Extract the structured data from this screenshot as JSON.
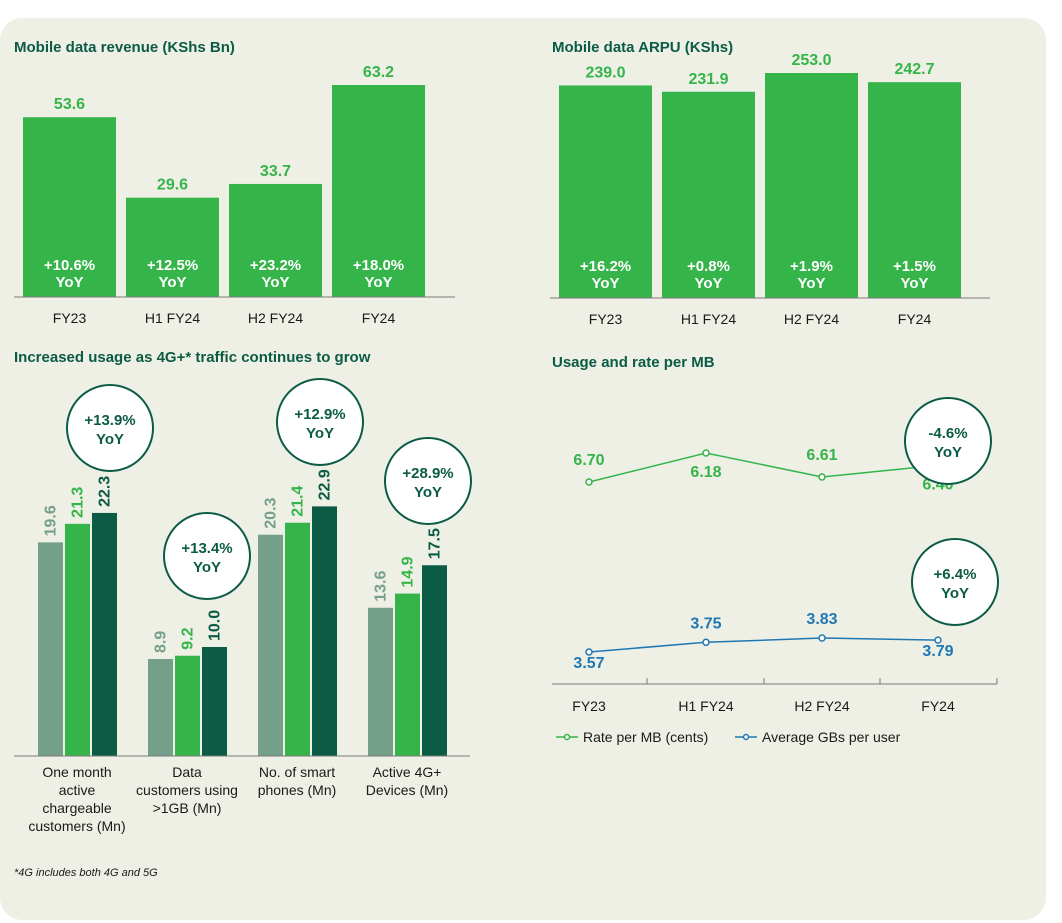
{
  "colors": {
    "bright_green": "#35b44a",
    "dark_green": "#0b5b45",
    "grey_green": "#749f8b",
    "blue": "#1f78b4",
    "panel_bg": "#eef0e6"
  },
  "chart_data": [
    {
      "type": "bar",
      "title": "Mobile data revenue (KShs Bn)",
      "categories": [
        "FY23",
        "H1 FY24",
        "H2 FY24",
        "FY24"
      ],
      "values": [
        53.6,
        29.6,
        33.7,
        63.2
      ],
      "value_labels": [
        "53.6",
        "29.6",
        "33.7",
        "63.2"
      ],
      "yoy_pct": [
        "+10.6%",
        "+12.5%",
        "+23.2%",
        "+18.0%"
      ],
      "yoy_suffix": "YoY"
    },
    {
      "type": "bar",
      "title": "Mobile data ARPU (KShs)",
      "categories": [
        "FY23",
        "H1 FY24",
        "H2 FY24",
        "FY24"
      ],
      "values": [
        239.0,
        231.9,
        253.0,
        242.7
      ],
      "value_labels": [
        "239.0",
        "231.9",
        "253.0",
        "242.7"
      ],
      "yoy_pct": [
        "+16.2%",
        "+0.8%",
        "+1.9%",
        "+1.5%"
      ],
      "yoy_suffix": "YoY"
    },
    {
      "type": "bar",
      "title": "Increased usage as 4G+* traffic continues to grow",
      "groups": [
        {
          "label_lines": [
            "One month",
            "active",
            "chargeable",
            "customers (Mn)"
          ],
          "values": [
            19.6,
            21.3,
            22.3
          ],
          "value_labels": [
            "19.6",
            "21.3",
            "22.3"
          ],
          "bubble": [
            "+13.9%",
            "YoY"
          ]
        },
        {
          "label_lines": [
            "Data",
            "customers using",
            ">1GB (Mn)"
          ],
          "values": [
            8.9,
            9.2,
            10.0
          ],
          "value_labels": [
            "8.9",
            "9.2",
            "10.0"
          ],
          "bubble": [
            "+13.4%",
            "YoY"
          ]
        },
        {
          "label_lines": [
            "No. of smart",
            "phones (Mn)"
          ],
          "values": [
            20.3,
            21.4,
            22.9
          ],
          "value_labels": [
            "20.3",
            "21.4",
            "22.9"
          ],
          "bubble": [
            "+12.9%",
            "YoY"
          ]
        },
        {
          "label_lines": [
            "Active 4G+",
            "Devices (Mn)"
          ],
          "values": [
            13.6,
            14.9,
            17.5
          ],
          "value_labels": [
            "13.6",
            "14.9",
            "17.5"
          ],
          "bubble": [
            "+28.9%",
            "YoY"
          ]
        }
      ],
      "series_colors": [
        "#749f8b",
        "#35b44a",
        "#0b5b45"
      ],
      "footnote": "*4G includes both 4G and 5G"
    },
    {
      "type": "line",
      "title": "Usage and rate per MB",
      "categories": [
        "FY23",
        "H1 FY24",
        "H2 FY24",
        "FY24"
      ],
      "series": [
        {
          "name": "Rate per MB (cents)",
          "values": [
            6.7,
            6.18,
            6.61,
            6.4
          ],
          "value_labels": [
            "6.70",
            "6.18",
            "6.61",
            "6.40"
          ],
          "color": "#35b44a",
          "bubble": [
            "-4.6%",
            "YoY"
          ]
        },
        {
          "name": "Average GBs per user",
          "values": [
            3.57,
            3.75,
            3.83,
            3.79
          ],
          "value_labels": [
            "3.57",
            "3.75",
            "3.83",
            "3.79"
          ],
          "color": "#1f78b4",
          "bubble": [
            "+6.4%",
            "YoY"
          ]
        }
      ]
    }
  ]
}
